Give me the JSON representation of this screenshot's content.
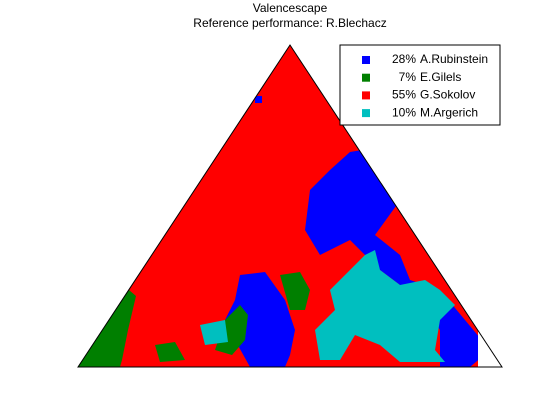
{
  "chart_data": {
    "type": "ternary-map",
    "title": "Valencescape",
    "subtitle": "Reference performance: R.Blechacz",
    "series": [
      {
        "name": "A.Rubinstein",
        "color": "#0000ff",
        "value": 28,
        "value_label": "28%"
      },
      {
        "name": "E.Gilels",
        "color": "#007f00",
        "value": 7,
        "value_label": "7%"
      },
      {
        "name": "G.Sokolov",
        "color": "#ff0000",
        "value": 55,
        "value_label": "55%"
      },
      {
        "name": "M.Argerich",
        "color": "#00bfbf",
        "value": 10,
        "value_label": "10%"
      }
    ]
  }
}
